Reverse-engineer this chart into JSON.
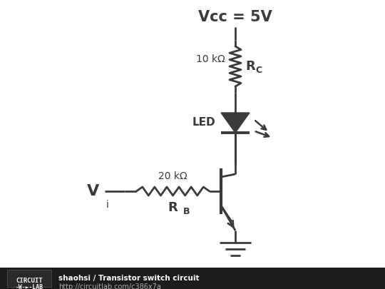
{
  "bg_color": "#ffffff",
  "line_color": "#3a3a3a",
  "text_color": "#3a3a3a",
  "footer_bg": "#1c1c1c",
  "footer_text_color": "#ffffff",
  "footer_url_color": "#aaaaaa",
  "vcc_label": "Vcc = 5V",
  "rc_label": "R",
  "rc_sub": "C",
  "rc_value": "10 kΩ",
  "rb_label": "R",
  "rb_sub": "B",
  "rb_value": "20 kΩ",
  "led_label": "LED",
  "vi_label": "V",
  "vi_sub": "i",
  "footer_author": "shaohsi / Transistor switch circuit",
  "footer_url": "http://circuitlab.com/c386x7a"
}
